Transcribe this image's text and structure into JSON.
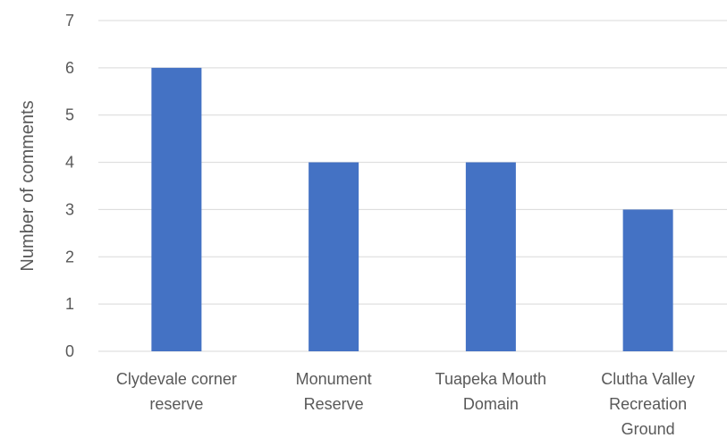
{
  "chart_data": {
    "type": "bar",
    "categories": [
      [
        "Clydevale corner",
        "reserve"
      ],
      [
        "Monument",
        "Reserve"
      ],
      [
        "Tuapeka Mouth",
        "Domain"
      ],
      [
        "Clutha Valley",
        "Recreation",
        "Ground"
      ]
    ],
    "values": [
      6,
      4,
      4,
      3
    ],
    "title": "",
    "xlabel": "",
    "ylabel": "Number of comments",
    "ylim": [
      0,
      7
    ],
    "yticks": [
      "0",
      "1",
      "2",
      "3",
      "4",
      "5",
      "6",
      "7"
    ],
    "grid": true,
    "legend": "none",
    "bar_color": "#4472c4"
  }
}
